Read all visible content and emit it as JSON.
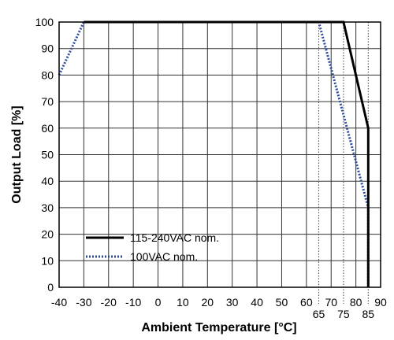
{
  "chart_data": {
    "type": "line",
    "title": "",
    "xlabel": "Ambient Temperature [°C]",
    "ylabel": "Output Load [%]",
    "xlim": [
      -40,
      90
    ],
    "ylim": [
      0,
      100
    ],
    "grid": true,
    "legend_position": "bottom-left",
    "x_ticks": [
      "-40",
      "-30",
      "-20",
      "-10",
      "0",
      "10",
      "20",
      "30",
      "40",
      "50",
      "60",
      "70",
      "80",
      "90"
    ],
    "y_ticks": [
      "0",
      "10",
      "20",
      "30",
      "40",
      "50",
      "60",
      "70",
      "80",
      "90",
      "100"
    ],
    "extra_x_ticks": [
      "65",
      "75",
      "85"
    ],
    "series": [
      {
        "name": "115-240VAC nom.",
        "color": "#000000",
        "style": "solid",
        "points": [
          [
            -30,
            100
          ],
          [
            75,
            100
          ],
          [
            85,
            60
          ],
          [
            85,
            0
          ]
        ]
      },
      {
        "name": "100VAC nom.",
        "color": "#2e4a9e",
        "style": "dotted",
        "points": [
          [
            -40,
            80
          ],
          [
            -30,
            100
          ],
          [
            65,
            100
          ],
          [
            85,
            30
          ],
          [
            85,
            0
          ]
        ]
      }
    ]
  }
}
